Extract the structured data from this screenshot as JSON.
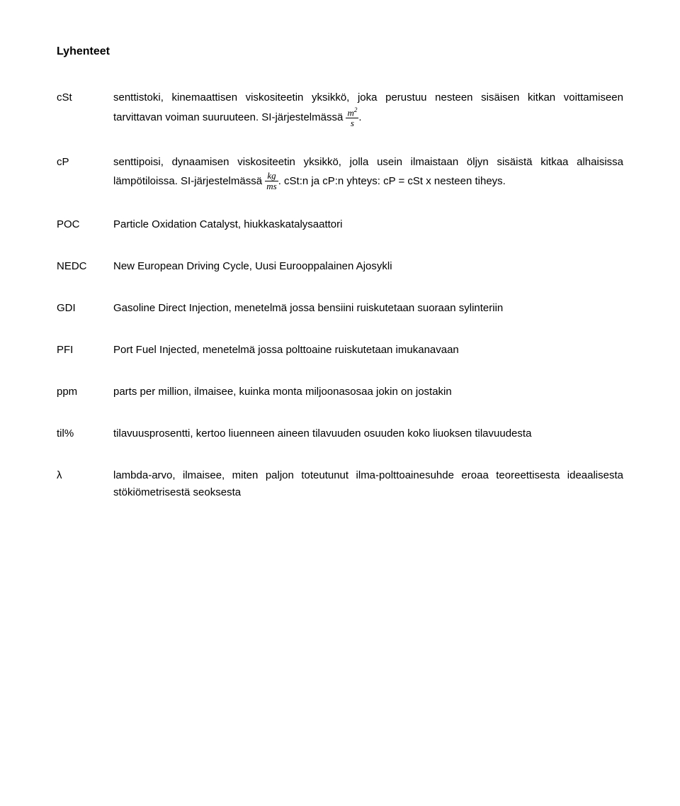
{
  "title": "Lyhenteet",
  "entries": [
    {
      "label": "cSt",
      "pre": "senttistoki, kinemaattisen viskositeetin yksikkö, joka perustuu nesteen sisäisen kitkan voittamiseen tarvittavan voiman suuruuteen. SI-järjestelmässä ",
      "frac_num": "m",
      "frac_num_sup": "2",
      "frac_den": "s",
      "post": "."
    },
    {
      "label": "cP",
      "pre": "senttipoisi, dynaamisen viskositeetin yksikkö, jolla usein ilmaistaan öljyn sisäistä kitkaa alhaisissa lämpötiloissa. SI-järjestelmässä ",
      "frac_num": "kg",
      "frac_den": "ms",
      "post": ". cSt:n ja cP:n yhteys: cP = cSt x nesteen tiheys."
    },
    {
      "label": "POC",
      "text": "Particle Oxidation Catalyst, hiukkaskatalysaattori"
    },
    {
      "label": "NEDC",
      "text": "New European Driving Cycle, Uusi Eurooppalainen Ajosykli"
    },
    {
      "label": "GDI",
      "text": "Gasoline Direct Injection, menetelmä jossa bensiini ruiskutetaan suoraan sylinteriin"
    },
    {
      "label": "PFI",
      "text": "Port Fuel Injected, menetelmä jossa polttoaine ruiskutetaan imukanavaan"
    },
    {
      "label": "ppm",
      "text": "parts per million, ilmaisee, kuinka monta miljoonasosaa jokin on jostakin"
    },
    {
      "label": "til%",
      "text": "tilavuusprosentti, kertoo liuenneen aineen tilavuuden osuuden koko liuoksen tilavuudesta"
    },
    {
      "label": "λ",
      "text": "lambda-arvo, ilmaisee, miten paljon toteutunut ilma-polttoainesuhde eroaa teoreettisesta ideaalisesta stökiömetrisestä seoksesta"
    }
  ]
}
